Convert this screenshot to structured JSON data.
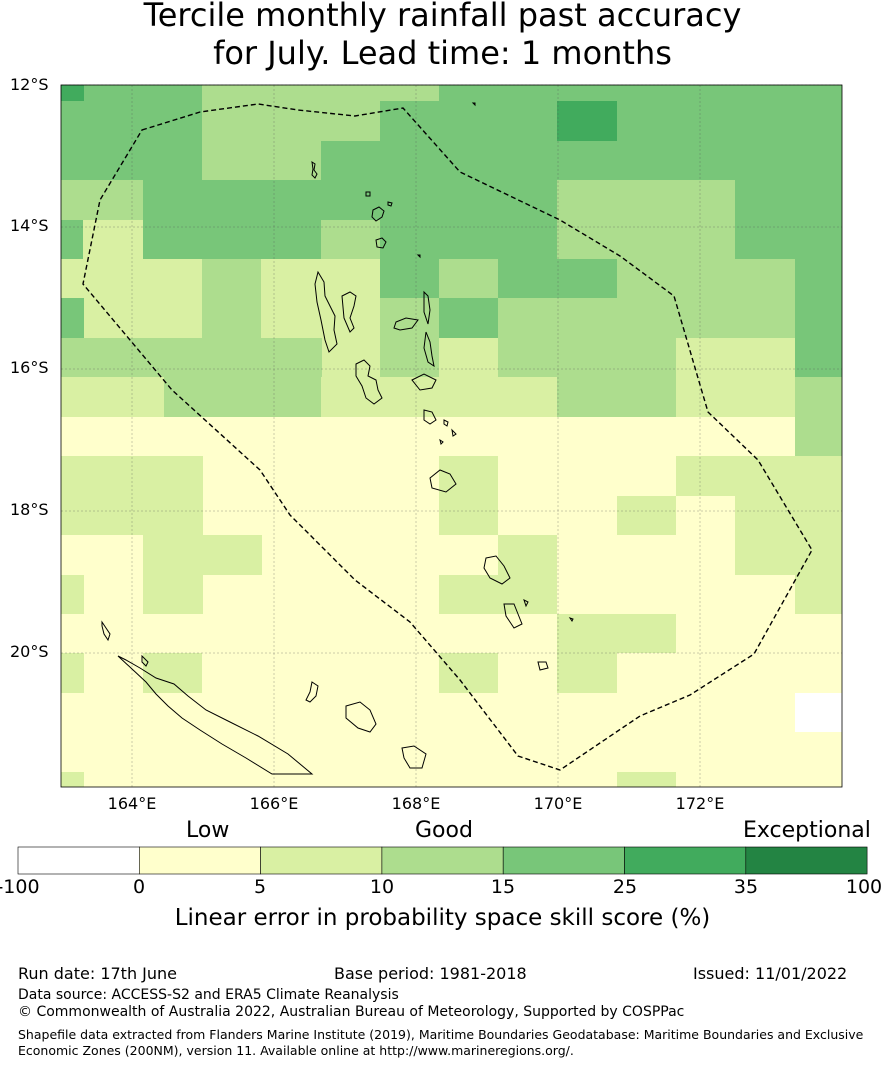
{
  "title": {
    "line1": "Tercile monthly rainfall past accuracy",
    "line2": "for July. Lead time: 1 months"
  },
  "map": {
    "lat_labels": [
      "12°S",
      "14°S",
      "16°S",
      "18°S",
      "20°S"
    ],
    "lon_labels": [
      "164°E",
      "166°E",
      "168°E",
      "170°E",
      "172°E"
    ],
    "lon_range": [
      163.0,
      174.0
    ],
    "lat_range": [
      -21.9,
      -12.0
    ],
    "grid_lines": true,
    "eez_boundary": "dashed"
  },
  "legend": {
    "categories": [
      "Low",
      "Good",
      "Exceptional"
    ],
    "ticks": [
      "-100",
      "0",
      "5",
      "10",
      "15",
      "25",
      "35",
      "100"
    ],
    "colors": [
      "#ffffff",
      "#ffffcc",
      "#d9f0a3",
      "#addd8e",
      "#78c679",
      "#41ab5d",
      "#238443"
    ],
    "label": "Linear error in probability space skill score (%)"
  },
  "footer": {
    "run_date": "Run date: 17th June",
    "base_period": "Base period: 1981-2018",
    "issued": "Issued: 11/01/2022",
    "data_source": "Data source: ACCESS-S2 and ERA5 Climate Reanalysis",
    "copyright": "© Commonwealth of Australia 2022, Australian Bureau of Meteorology, Supported by COSPPac",
    "shapefile_line1": "Shapefile data extracted from Flanders Marine Institute (2019), Maritime Boundaries Geodatabase: Maritime Boundaries and Exclusive",
    "shapefile_line2": "Economic Zones (200NM), version 11. Available online at http://www.marineregions.org/."
  }
}
